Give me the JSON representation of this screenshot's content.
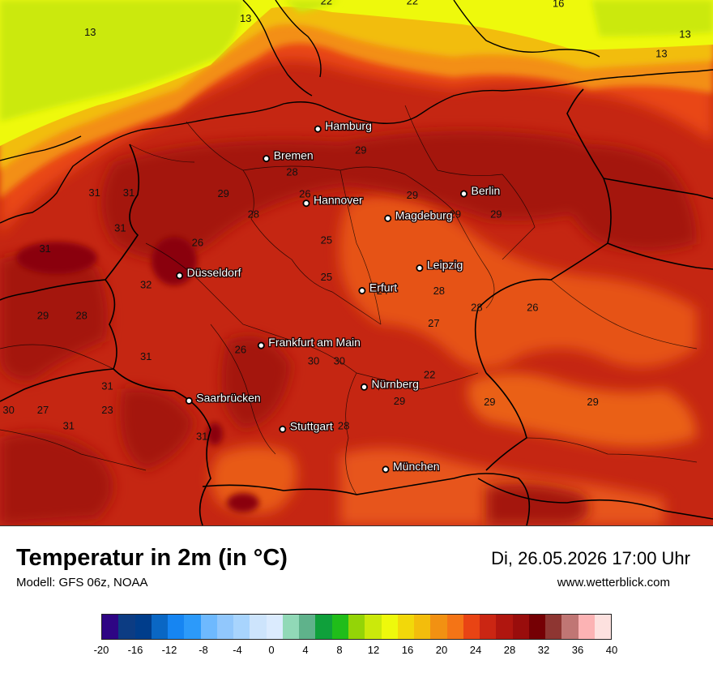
{
  "map": {
    "cities": [
      {
        "name": "Hamburg",
        "lon": 10.0,
        "lat": 53.55
      },
      {
        "name": "Bremen",
        "lon": 8.8,
        "lat": 53.08
      },
      {
        "name": "Hannover",
        "lon": 9.73,
        "lat": 52.37
      },
      {
        "name": "Berlin",
        "lon": 13.4,
        "lat": 52.52
      },
      {
        "name": "Magdeburg",
        "lon": 11.63,
        "lat": 52.13
      },
      {
        "name": "Düsseldorf",
        "lon": 6.78,
        "lat": 51.22
      },
      {
        "name": "Leipzig",
        "lon": 12.37,
        "lat": 51.34
      },
      {
        "name": "Erfurt",
        "lon": 11.03,
        "lat": 50.98
      },
      {
        "name": "Frankfurt am Main",
        "lon": 8.68,
        "lat": 50.11
      },
      {
        "name": "Nürnberg",
        "lon": 11.08,
        "lat": 49.45
      },
      {
        "name": "Saarbrücken",
        "lon": 7.0,
        "lat": 49.23
      },
      {
        "name": "Stuttgart",
        "lon": 9.18,
        "lat": 48.78
      },
      {
        "name": "München",
        "lon": 11.58,
        "lat": 48.14
      }
    ],
    "isotherm_labels": [
      {
        "text": "13",
        "lon": 8.32,
        "lat": 55.25
      },
      {
        "text": "13",
        "lon": 4.7,
        "lat": 55.03
      },
      {
        "text": "13",
        "lon": 18.0,
        "lat": 54.69
      },
      {
        "text": "13",
        "lon": 18.55,
        "lat": 55.0
      },
      {
        "text": "22",
        "lon": 10.2,
        "lat": 55.53
      },
      {
        "text": "22",
        "lon": 12.2,
        "lat": 55.53
      },
      {
        "text": "16",
        "lon": 15.6,
        "lat": 55.49
      },
      {
        "text": "31",
        "lon": 4.8,
        "lat": 52.48
      },
      {
        "text": "31",
        "lon": 5.6,
        "lat": 52.48
      },
      {
        "text": "31",
        "lon": 5.4,
        "lat": 51.92
      },
      {
        "text": "31",
        "lon": 3.65,
        "lat": 51.59
      },
      {
        "text": "32",
        "lon": 6.0,
        "lat": 51.02
      },
      {
        "text": "29",
        "lon": 7.8,
        "lat": 52.47
      },
      {
        "text": "28",
        "lon": 9.4,
        "lat": 52.81
      },
      {
        "text": "28",
        "lon": 8.5,
        "lat": 52.14
      },
      {
        "text": "26",
        "lon": 9.7,
        "lat": 52.46
      },
      {
        "text": "29",
        "lon": 11.0,
        "lat": 53.16
      },
      {
        "text": "29",
        "lon": 12.2,
        "lat": 52.44
      },
      {
        "text": "29",
        "lon": 13.2,
        "lat": 52.14
      },
      {
        "text": "29",
        "lon": 14.15,
        "lat": 52.14
      },
      {
        "text": "26",
        "lon": 7.2,
        "lat": 51.69
      },
      {
        "text": "25",
        "lon": 10.2,
        "lat": 51.73
      },
      {
        "text": "25",
        "lon": 10.2,
        "lat": 51.14
      },
      {
        "text": "24",
        "lon": 11.5,
        "lat": 50.92
      },
      {
        "text": "28",
        "lon": 12.82,
        "lat": 50.92
      },
      {
        "text": "28",
        "lon": 13.7,
        "lat": 50.66
      },
      {
        "text": "26",
        "lon": 15.0,
        "lat": 50.66
      },
      {
        "text": "27",
        "lon": 12.7,
        "lat": 50.41
      },
      {
        "text": "29",
        "lon": 3.6,
        "lat": 50.53
      },
      {
        "text": "28",
        "lon": 4.5,
        "lat": 50.53
      },
      {
        "text": "26",
        "lon": 8.2,
        "lat": 49.99
      },
      {
        "text": "30",
        "lon": 9.9,
        "lat": 49.81
      },
      {
        "text": "30",
        "lon": 10.5,
        "lat": 49.81
      },
      {
        "text": "22",
        "lon": 12.6,
        "lat": 49.59
      },
      {
        "text": "31",
        "lon": 6.0,
        "lat": 49.88
      },
      {
        "text": "31",
        "lon": 5.1,
        "lat": 49.41
      },
      {
        "text": "30",
        "lon": 2.8,
        "lat": 49.03
      },
      {
        "text": "27",
        "lon": 3.6,
        "lat": 49.03
      },
      {
        "text": "23",
        "lon": 5.1,
        "lat": 49.03
      },
      {
        "text": "31",
        "lon": 4.2,
        "lat": 48.78
      },
      {
        "text": "29",
        "lon": 11.9,
        "lat": 49.17
      },
      {
        "text": "29",
        "lon": 14.0,
        "lat": 49.16
      },
      {
        "text": "29",
        "lon": 16.4,
        "lat": 49.16
      },
      {
        "text": "28",
        "lon": 10.6,
        "lat": 48.78
      },
      {
        "text": "31",
        "lon": 7.3,
        "lat": 48.61
      }
    ]
  },
  "footer": {
    "title": "Temperatur in 2m (in °C)",
    "model": "Modell: GFS 06z, NOAA",
    "datetime": "Di, 26.05.2026 17:00 Uhr",
    "website": "www.wetterblick.com"
  },
  "legend": {
    "colors": [
      "#2e0584",
      "#0c3c83",
      "#003d8b",
      "#0a67c4",
      "#1685f2",
      "#2c9afa",
      "#6eb9fe",
      "#91c7fc",
      "#a8d4fd",
      "#cde4fc",
      "#dbebfe",
      "#91d9b7",
      "#5fb28b",
      "#0fa03b",
      "#20bd1a",
      "#94d407",
      "#cbe90b",
      "#eef90c",
      "#f2d80a",
      "#f3bd0c",
      "#f29112",
      "#f47416",
      "#e94414",
      "#cb2613",
      "#b0160f",
      "#990d0c",
      "#750004",
      "#8e3632",
      "#c07674",
      "#fcb3b4",
      "#fde1df"
    ],
    "ticks": [
      "-20",
      "-16",
      "-12",
      "-8",
      "-4",
      "0",
      "4",
      "8",
      "12",
      "16",
      "20",
      "24",
      "28",
      "32",
      "36",
      "40"
    ],
    "range": [
      -20,
      40
    ]
  }
}
